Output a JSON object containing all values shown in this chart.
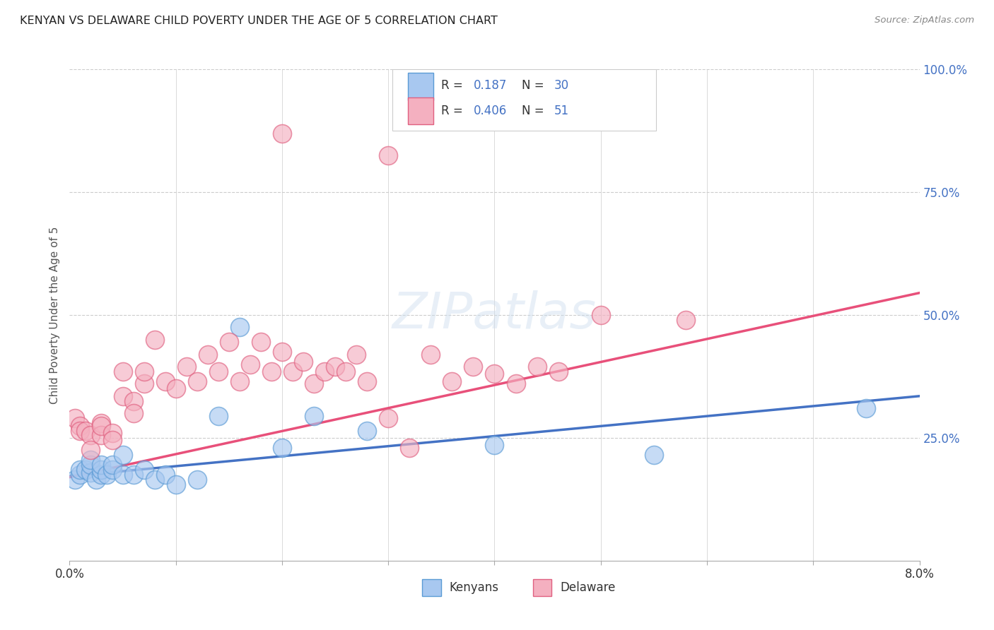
{
  "title": "KENYAN VS DELAWARE CHILD POVERTY UNDER THE AGE OF 5 CORRELATION CHART",
  "source": "Source: ZipAtlas.com",
  "ylabel": "Child Poverty Under the Age of 5",
  "xlim": [
    0.0,
    0.08
  ],
  "ylim": [
    0.0,
    1.0
  ],
  "r_kenyan": "0.187",
  "n_kenyan": "30",
  "r_delaware": "0.406",
  "n_delaware": "51",
  "color_kenyan_fill": "#A8C8F0",
  "color_kenyan_edge": "#5B9BD5",
  "color_delaware_fill": "#F4B0C0",
  "color_delaware_edge": "#E06080",
  "color_kenyan_line": "#4472C4",
  "color_delaware_line": "#E8507A",
  "color_r_n": "#4472C4",
  "bg": "#FFFFFF",
  "grid_color": "#CCCCCC",
  "kenyan_x": [
    0.0005,
    0.001,
    0.001,
    0.0015,
    0.002,
    0.002,
    0.002,
    0.0025,
    0.003,
    0.003,
    0.003,
    0.0035,
    0.004,
    0.004,
    0.005,
    0.005,
    0.006,
    0.007,
    0.008,
    0.009,
    0.01,
    0.012,
    0.014,
    0.016,
    0.02,
    0.023,
    0.028,
    0.04,
    0.055,
    0.075
  ],
  "kenyan_y": [
    0.165,
    0.175,
    0.185,
    0.185,
    0.18,
    0.195,
    0.205,
    0.165,
    0.175,
    0.185,
    0.195,
    0.175,
    0.185,
    0.195,
    0.215,
    0.175,
    0.175,
    0.185,
    0.165,
    0.175,
    0.155,
    0.165,
    0.295,
    0.475,
    0.23,
    0.295,
    0.265,
    0.235,
    0.215,
    0.31
  ],
  "delaware_x": [
    0.0005,
    0.001,
    0.001,
    0.0015,
    0.002,
    0.002,
    0.003,
    0.003,
    0.003,
    0.004,
    0.004,
    0.005,
    0.005,
    0.006,
    0.006,
    0.007,
    0.007,
    0.008,
    0.009,
    0.01,
    0.011,
    0.012,
    0.013,
    0.014,
    0.015,
    0.016,
    0.017,
    0.018,
    0.019,
    0.02,
    0.021,
    0.022,
    0.023,
    0.024,
    0.025,
    0.026,
    0.027,
    0.028,
    0.03,
    0.032,
    0.034,
    0.036,
    0.038,
    0.04,
    0.042,
    0.044,
    0.046,
    0.05,
    0.058,
    0.03,
    0.02
  ],
  "delaware_y": [
    0.29,
    0.275,
    0.265,
    0.265,
    0.255,
    0.225,
    0.28,
    0.255,
    0.275,
    0.26,
    0.245,
    0.385,
    0.335,
    0.325,
    0.3,
    0.36,
    0.385,
    0.45,
    0.365,
    0.35,
    0.395,
    0.365,
    0.42,
    0.385,
    0.445,
    0.365,
    0.4,
    0.445,
    0.385,
    0.425,
    0.385,
    0.405,
    0.36,
    0.385,
    0.395,
    0.385,
    0.42,
    0.365,
    0.29,
    0.23,
    0.42,
    0.365,
    0.395,
    0.38,
    0.36,
    0.395,
    0.385,
    0.5,
    0.49,
    0.825,
    0.87
  ]
}
